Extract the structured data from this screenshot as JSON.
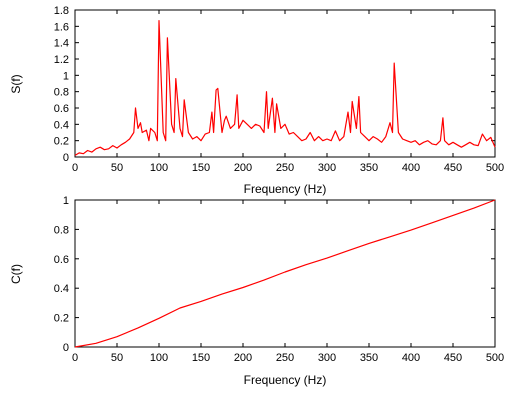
{
  "chart_data": [
    {
      "type": "line",
      "xlabel": "Frequency (Hz)",
      "ylabel": "S(f)",
      "xlim": [
        0,
        500
      ],
      "ylim": [
        0,
        1.8
      ],
      "xticks": [
        0,
        50,
        100,
        150,
        200,
        250,
        300,
        350,
        400,
        450,
        500
      ],
      "yticks": [
        0,
        0.2,
        0.4,
        0.6,
        0.8,
        1,
        1.2,
        1.4,
        1.6,
        1.8
      ],
      "grid": false,
      "color": "#ff0000",
      "series": [
        {
          "x": [
            0,
            5,
            10,
            15,
            20,
            25,
            30,
            35,
            40,
            45,
            50,
            55,
            60,
            65,
            70,
            72,
            75,
            78,
            80,
            85,
            88,
            90,
            95,
            98,
            100,
            105,
            108,
            110,
            115,
            118,
            120,
            125,
            128,
            130,
            135,
            140,
            145,
            150,
            155,
            160,
            163,
            165,
            168,
            170,
            175,
            178,
            180,
            185,
            190,
            193,
            195,
            200,
            205,
            210,
            215,
            220,
            225,
            228,
            230,
            235,
            238,
            240,
            245,
            250,
            255,
            260,
            265,
            270,
            275,
            280,
            285,
            290,
            295,
            300,
            305,
            310,
            315,
            320,
            325,
            328,
            330,
            335,
            338,
            340,
            345,
            350,
            355,
            360,
            365,
            370,
            375,
            378,
            380,
            385,
            390,
            395,
            400,
            405,
            410,
            415,
            420,
            425,
            430,
            435,
            438,
            440,
            445,
            450,
            455,
            460,
            465,
            470,
            475,
            480,
            485,
            490,
            495,
            500
          ],
          "y": [
            0.02,
            0.05,
            0.04,
            0.08,
            0.06,
            0.1,
            0.12,
            0.09,
            0.1,
            0.14,
            0.11,
            0.15,
            0.18,
            0.22,
            0.3,
            0.6,
            0.35,
            0.42,
            0.3,
            0.33,
            0.2,
            0.35,
            0.3,
            0.2,
            1.67,
            0.3,
            0.2,
            1.46,
            0.4,
            0.3,
            0.96,
            0.35,
            0.25,
            0.7,
            0.3,
            0.22,
            0.25,
            0.2,
            0.28,
            0.3,
            0.55,
            0.3,
            0.82,
            0.84,
            0.3,
            0.45,
            0.5,
            0.35,
            0.4,
            0.76,
            0.35,
            0.45,
            0.4,
            0.35,
            0.4,
            0.38,
            0.3,
            0.8,
            0.35,
            0.72,
            0.3,
            0.65,
            0.35,
            0.4,
            0.28,
            0.3,
            0.25,
            0.2,
            0.22,
            0.3,
            0.2,
            0.25,
            0.2,
            0.22,
            0.2,
            0.32,
            0.2,
            0.25,
            0.55,
            0.3,
            0.68,
            0.35,
            0.74,
            0.3,
            0.25,
            0.2,
            0.25,
            0.22,
            0.18,
            0.25,
            0.42,
            0.3,
            1.15,
            0.3,
            0.22,
            0.2,
            0.18,
            0.2,
            0.15,
            0.18,
            0.2,
            0.16,
            0.15,
            0.2,
            0.48,
            0.2,
            0.15,
            0.18,
            0.15,
            0.12,
            0.15,
            0.18,
            0.15,
            0.14,
            0.28,
            0.2,
            0.24,
            0.12
          ]
        }
      ]
    },
    {
      "type": "line",
      "xlabel": "Frequency (Hz)",
      "ylabel": "C(f)",
      "xlim": [
        0,
        500
      ],
      "ylim": [
        0,
        1
      ],
      "xticks": [
        0,
        50,
        100,
        150,
        200,
        250,
        300,
        350,
        400,
        450,
        500
      ],
      "yticks": [
        0,
        0.2,
        0.4,
        0.6,
        0.8,
        1
      ],
      "grid": false,
      "color": "#ff0000",
      "series": [
        {
          "x": [
            0,
            25,
            50,
            75,
            100,
            125,
            150,
            175,
            200,
            225,
            250,
            275,
            300,
            325,
            350,
            375,
            400,
            425,
            450,
            475,
            500
          ],
          "y": [
            0,
            0.025,
            0.07,
            0.13,
            0.195,
            0.265,
            0.31,
            0.36,
            0.405,
            0.455,
            0.51,
            0.56,
            0.605,
            0.655,
            0.705,
            0.75,
            0.795,
            0.845,
            0.895,
            0.945,
            1.0
          ]
        }
      ]
    }
  ]
}
